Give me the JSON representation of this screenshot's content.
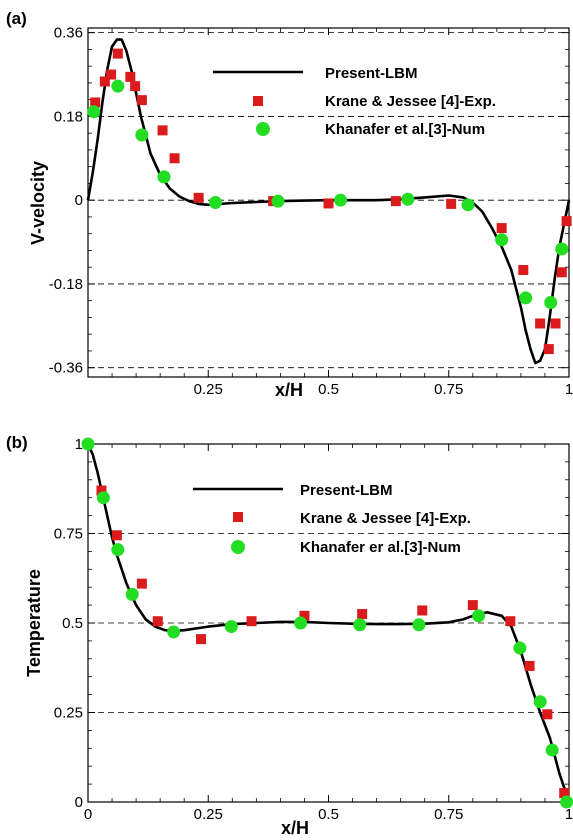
{
  "colors": {
    "line": "#000000",
    "experiment": "#d91b1b",
    "numeric": "#22dd22",
    "grid": "#000000"
  },
  "chart_data": [
    {
      "type": "line",
      "panel_label": "(a)",
      "xlabel": "x/H",
      "ylabel": "V-velocity",
      "xlim": [
        0,
        1
      ],
      "ylim": [
        -0.38,
        0.37
      ],
      "xticks": [
        0.25,
        0.5,
        0.75,
        1
      ],
      "xtick_labels": [
        "0.25",
        "0.5",
        "0.75",
        "1"
      ],
      "yticks": [
        -0.36,
        -0.18,
        0,
        0.18,
        0.36
      ],
      "ytick_labels": [
        "-0.36",
        "-0.18",
        "0",
        "0.18",
        "0.36"
      ],
      "grid": "horizontal dashed",
      "legend_position": "top-right",
      "series": [
        {
          "name": "Present-LBM",
          "kind": "line",
          "x": [
            0.0,
            0.01,
            0.02,
            0.03,
            0.04,
            0.05,
            0.06,
            0.07,
            0.08,
            0.09,
            0.1,
            0.11,
            0.12,
            0.13,
            0.15,
            0.17,
            0.19,
            0.21,
            0.23,
            0.25,
            0.3,
            0.35,
            0.4,
            0.45,
            0.5,
            0.55,
            0.6,
            0.65,
            0.7,
            0.75,
            0.78,
            0.8,
            0.82,
            0.84,
            0.86,
            0.88,
            0.9,
            0.91,
            0.92,
            0.93,
            0.94,
            0.95,
            0.96,
            0.97,
            0.98,
            0.99,
            1.0
          ],
          "y": [
            0.0,
            0.06,
            0.13,
            0.21,
            0.28,
            0.33,
            0.345,
            0.345,
            0.32,
            0.28,
            0.23,
            0.18,
            0.14,
            0.1,
            0.055,
            0.025,
            0.008,
            -0.002,
            -0.008,
            -0.01,
            -0.006,
            -0.004,
            -0.002,
            -0.001,
            0.0,
            0.0,
            0.0,
            0.002,
            0.006,
            0.01,
            0.006,
            -0.005,
            -0.025,
            -0.06,
            -0.1,
            -0.15,
            -0.23,
            -0.28,
            -0.32,
            -0.35,
            -0.345,
            -0.32,
            -0.25,
            -0.17,
            -0.1,
            -0.05,
            0.0
          ]
        },
        {
          "name": "Krane & Jessee [4]-Exp.",
          "kind": "square",
          "x": [
            0.015,
            0.035,
            0.048,
            0.062,
            0.088,
            0.098,
            0.112,
            0.155,
            0.18,
            0.23,
            0.385,
            0.5,
            0.64,
            0.755,
            0.86,
            0.905,
            0.94,
            0.958,
            0.972,
            0.985,
            0.995
          ],
          "y": [
            0.21,
            0.255,
            0.27,
            0.315,
            0.265,
            0.245,
            0.215,
            0.15,
            0.09,
            0.005,
            -0.002,
            -0.007,
            -0.002,
            -0.008,
            -0.06,
            -0.15,
            -0.265,
            -0.32,
            -0.265,
            -0.155,
            -0.045
          ]
        },
        {
          "name": "Khanafer et al.[3]-Num",
          "kind": "circle",
          "x": [
            0.012,
            0.062,
            0.112,
            0.158,
            0.265,
            0.395,
            0.525,
            0.665,
            0.79,
            0.86,
            0.91,
            0.962,
            0.985
          ],
          "y": [
            0.19,
            0.245,
            0.14,
            0.05,
            -0.005,
            -0.002,
            0.0,
            0.002,
            -0.01,
            -0.085,
            -0.21,
            -0.22,
            -0.105
          ]
        }
      ]
    },
    {
      "type": "line",
      "panel_label": "(b)",
      "xlabel": "x/H",
      "ylabel": "Temperature",
      "xlim": [
        0,
        1
      ],
      "ylim": [
        0,
        1
      ],
      "xticks": [
        0,
        0.25,
        0.5,
        0.75,
        1
      ],
      "xtick_labels": [
        "0",
        "0.25",
        "0.5",
        "0.75",
        "1"
      ],
      "yticks": [
        0,
        0.25,
        0.5,
        0.75,
        1
      ],
      "ytick_labels": [
        "0",
        "0.25",
        "0.5",
        "0.75",
        "1"
      ],
      "grid": "horizontal dashed",
      "legend_position": "top-right",
      "series": [
        {
          "name": "Present-LBM",
          "kind": "line",
          "x": [
            0.0,
            0.01,
            0.02,
            0.03,
            0.04,
            0.05,
            0.06,
            0.08,
            0.1,
            0.12,
            0.14,
            0.16,
            0.18,
            0.2,
            0.25,
            0.3,
            0.35,
            0.4,
            0.45,
            0.5,
            0.55,
            0.6,
            0.65,
            0.7,
            0.75,
            0.78,
            0.8,
            0.83,
            0.86,
            0.88,
            0.9,
            0.92,
            0.94,
            0.96,
            0.97,
            0.98,
            0.99,
            1.0
          ],
          "y": [
            1.0,
            0.97,
            0.92,
            0.86,
            0.8,
            0.74,
            0.69,
            0.61,
            0.55,
            0.51,
            0.49,
            0.48,
            0.478,
            0.48,
            0.49,
            0.497,
            0.5,
            0.503,
            0.503,
            0.5,
            0.498,
            0.497,
            0.497,
            0.498,
            0.502,
            0.51,
            0.52,
            0.53,
            0.52,
            0.49,
            0.42,
            0.33,
            0.25,
            0.18,
            0.13,
            0.08,
            0.04,
            0.0
          ]
        },
        {
          "name": "Krane & Jessee [4]-Exp.",
          "kind": "square",
          "x": [
            0.028,
            0.06,
            0.112,
            0.145,
            0.235,
            0.34,
            0.45,
            0.57,
            0.695,
            0.8,
            0.878,
            0.918,
            0.955,
            0.99
          ],
          "y": [
            0.87,
            0.745,
            0.61,
            0.505,
            0.455,
            0.505,
            0.52,
            0.525,
            0.535,
            0.55,
            0.505,
            0.38,
            0.245,
            0.025
          ]
        },
        {
          "name": "Khanafer er al.[3]-Num",
          "kind": "circle",
          "x": [
            0.0,
            0.032,
            0.062,
            0.092,
            0.178,
            0.298,
            0.442,
            0.565,
            0.688,
            0.812,
            0.898,
            0.94,
            0.965,
            0.995
          ],
          "y": [
            1.0,
            0.85,
            0.705,
            0.58,
            0.475,
            0.49,
            0.5,
            0.495,
            0.495,
            0.52,
            0.43,
            0.28,
            0.145,
            0.0
          ]
        }
      ]
    }
  ]
}
